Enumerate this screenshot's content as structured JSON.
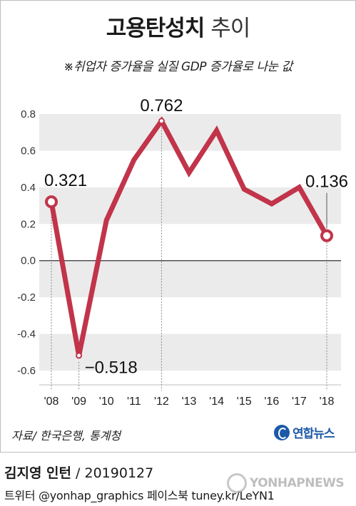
{
  "header": {
    "title_strong": "고용탄성치",
    "title_light": "추이",
    "subtitle": "※취업자 증가율을 실질 GDP 증가율로 나눈 값"
  },
  "chart_data": {
    "type": "line",
    "title": "고용탄성치 추이",
    "subtitle": "※취업자 증가율을 실질 GDP 증가율로 나눈 값",
    "x": [
      "'08",
      "'09",
      "'10",
      "'11",
      "'12",
      "'13",
      "'14",
      "'15",
      "'16",
      "'17",
      "'18"
    ],
    "series": [
      {
        "values": [
          0.321,
          -0.518,
          0.22,
          0.55,
          0.762,
          0.48,
          0.71,
          0.39,
          0.31,
          0.4,
          0.136
        ]
      }
    ],
    "ylim": [
      -0.7,
      0.8
    ],
    "yticks": [
      "0.8",
      "0.6",
      "0.4",
      "0.2",
      "0.0",
      "-0.2",
      "-0.4",
      "-0.6"
    ],
    "ytick_values": [
      0.8,
      0.6,
      0.4,
      0.2,
      0.0,
      -0.2,
      -0.4,
      -0.6
    ],
    "annotations": [
      {
        "index": 0,
        "label": "0.321"
      },
      {
        "index": 1,
        "label": "−0.518"
      },
      {
        "index": 4,
        "label": "0.762"
      },
      {
        "index": 10,
        "label": "0.136"
      }
    ],
    "line_color": "#c1344a",
    "grid": "alternating bands"
  },
  "footer": {
    "source": "자료/ 한국은행, 통계청",
    "brand": "연합뉴스",
    "author": "김지영 인턴",
    "date": " / 20190127",
    "social": "트위터 @yonhap_graphics  페이스북 tuney.kr/LeYN1",
    "watermark": "YONHAPNEWS"
  }
}
